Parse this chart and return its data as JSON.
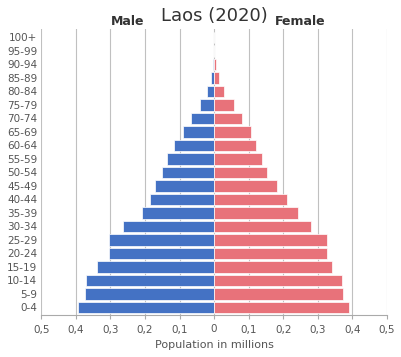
{
  "title": "Laos (2020)",
  "xlabel": "Population in millions",
  "age_groups": [
    "0-4",
    "5-9",
    "10-14",
    "15-19",
    "20-24",
    "25-29",
    "30-34",
    "35-39",
    "40-44",
    "45-49",
    "50-54",
    "55-59",
    "60-64",
    "65-69",
    "70-74",
    "75-79",
    "80-84",
    "85-89",
    "90-94",
    "95-99",
    "100+"
  ],
  "male": [
    0.395,
    0.375,
    0.37,
    0.34,
    0.305,
    0.305,
    0.265,
    0.21,
    0.185,
    0.17,
    0.15,
    0.135,
    0.115,
    0.09,
    0.068,
    0.042,
    0.02,
    0.009,
    0.003,
    0.001,
    0.0004
  ],
  "female": [
    0.39,
    0.374,
    0.37,
    0.342,
    0.328,
    0.328,
    0.282,
    0.242,
    0.212,
    0.182,
    0.152,
    0.138,
    0.122,
    0.108,
    0.082,
    0.058,
    0.03,
    0.014,
    0.005,
    0.001,
    0.0004
  ],
  "male_color": "#4472C4",
  "female_color": "#E8727A",
  "xlim": 0.5,
  "xticklabels": [
    "0,5",
    "0,4",
    "0,3",
    "0,2",
    "0,1",
    "0",
    "0,1",
    "0,2",
    "0,3",
    "0,4",
    "0,5"
  ],
  "male_label": "Male",
  "female_label": "Female",
  "grid_color": "#C0C0C0",
  "background_color": "#FFFFFF",
  "title_fontsize": 13,
  "label_fontsize": 9,
  "axis_fontsize": 7.5
}
